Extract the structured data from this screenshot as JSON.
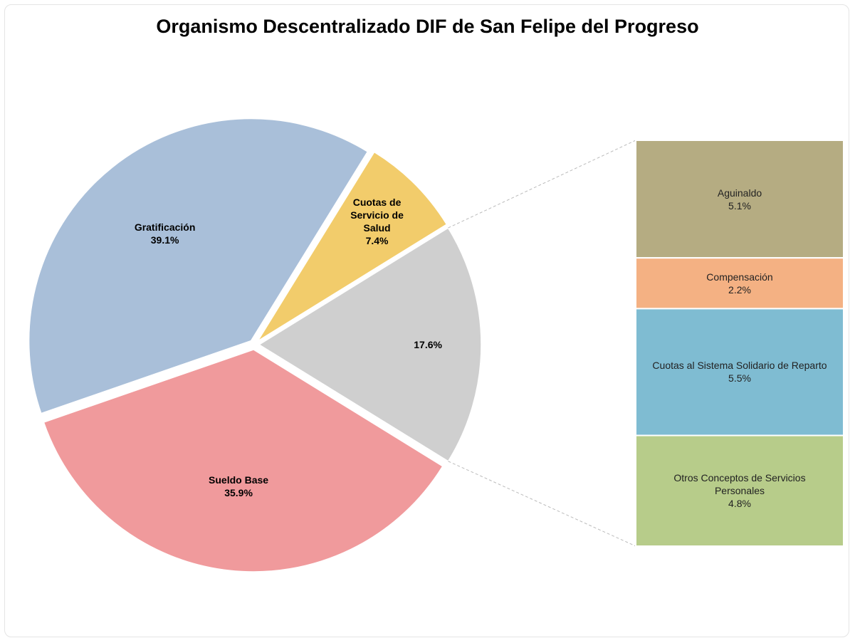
{
  "chart_data": {
    "type": "pie",
    "title": "Organismo Descentralizado DIF de San Felipe del Progreso",
    "categories": [
      null,
      "Sueldo Base",
      "Gratificación",
      "Cuotas de Servicio de Salud"
    ],
    "values": [
      17.6,
      35.9,
      39.1,
      7.4
    ],
    "value_labels": [
      "17.6%",
      "35.9%",
      "39.1%",
      "7.4%"
    ],
    "colors": [
      "#cfcfcf",
      "#f09a9c",
      "#a9bfd9",
      "#f2cc6b"
    ],
    "breakdown": {
      "type": "bar",
      "categories": [
        "Aguinaldo",
        "Compensación",
        "Cuotas al Sistema Solidario de Reparto",
        "Otros Conceptos de Servicios Personales"
      ],
      "values": [
        5.1,
        2.2,
        5.5,
        4.8
      ],
      "value_labels": [
        "5.1%",
        "2.2%",
        "5.5%",
        "4.8%"
      ],
      "colors": [
        "#b5ac82",
        "#f4b183",
        "#7fbcd2",
        "#b7cc8a"
      ]
    }
  }
}
